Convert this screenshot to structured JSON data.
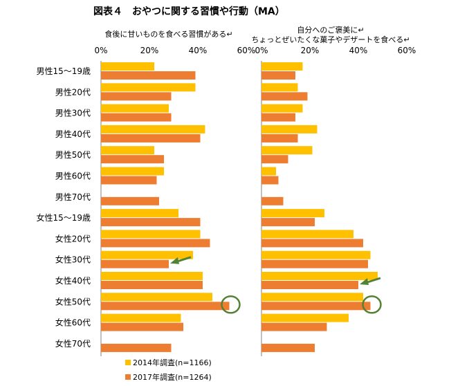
{
  "title": "図表４　おやつに関する習慣や行動（MA）",
  "chart_data": [
    {
      "type": "bar",
      "orientation": "horizontal",
      "title": "食後に甘いものを食べる習慣がある↵",
      "title_lines": [
        "食後に甘いものを食べる習慣がある↵"
      ],
      "xlim": [
        0,
        60
      ],
      "xticks": [
        "0%",
        "20%",
        "40%",
        "60%"
      ],
      "categories": [
        "男性15～19歳",
        "男性20代",
        "男性30代",
        "男性40代",
        "男性50代",
        "男性60代",
        "男性70代",
        "女性15～19歳",
        "女性20代",
        "女性30代",
        "女性40代",
        "女性50代",
        "女性60代",
        "女性70代"
      ],
      "series": [
        {
          "name": "2014年調査(n=1166)",
          "color": "#FFC000",
          "values": [
            22,
            39,
            28,
            43,
            22,
            26,
            null,
            32,
            41,
            38,
            42,
            46,
            33,
            null
          ]
        },
        {
          "name": "2017年調査(n=1264)",
          "color": "#ED7D31",
          "values": [
            39,
            29,
            29,
            41,
            26,
            23,
            24,
            41,
            45,
            28,
            42,
            53,
            34,
            29
          ]
        }
      ],
      "annotations": [
        {
          "type": "arrow",
          "category": "女性30代",
          "series": "2017年調査(n=1264)",
          "color": "#548235"
        },
        {
          "type": "circle",
          "category": "女性50代",
          "series": "2017年調査(n=1264)",
          "color": "#548235"
        }
      ],
      "grid": false
    },
    {
      "type": "bar",
      "orientation": "horizontal",
      "title": "自分へのご褒美に↵ ちょっとぜいたくな菓子やデザートを食べる↵",
      "title_lines": [
        "自分へのご褒美に↵",
        "ちょっとぜいたくな菓子やデザートを食べる↵"
      ],
      "xlim": [
        0,
        60
      ],
      "xticks": [
        "0%",
        "20%",
        "40%",
        "60%"
      ],
      "categories": [
        "男性15～19歳",
        "男性20代",
        "男性30代",
        "男性40代",
        "男性50代",
        "男性60代",
        "男性70代",
        "女性15～19歳",
        "女性20代",
        "女性30代",
        "女性40代",
        "女性50代",
        "女性60代",
        "女性70代"
      ],
      "series": [
        {
          "name": "2014年調査(n=1166)",
          "color": "#FFC000",
          "values": [
            17,
            15,
            17,
            23,
            21,
            6,
            null,
            26,
            38,
            45,
            48,
            42,
            36,
            null
          ]
        },
        {
          "name": "2017年調査(n=1264)",
          "color": "#ED7D31",
          "values": [
            14,
            19,
            14,
            15,
            11,
            7,
            9,
            22,
            42,
            44,
            40,
            45,
            27,
            22
          ]
        }
      ],
      "annotations": [
        {
          "type": "arrow",
          "category": "女性40代",
          "series": "2017年調査(n=1264)",
          "color": "#548235"
        },
        {
          "type": "circle",
          "category": "女性50代",
          "series": "2017年調査(n=1264)",
          "color": "#548235"
        }
      ],
      "grid": false
    }
  ],
  "legend": [
    {
      "label": "2014年調査(n=1166)",
      "color": "#FFC000"
    },
    {
      "label": "2017年調査(n=1264)",
      "color": "#ED7D31"
    }
  ]
}
